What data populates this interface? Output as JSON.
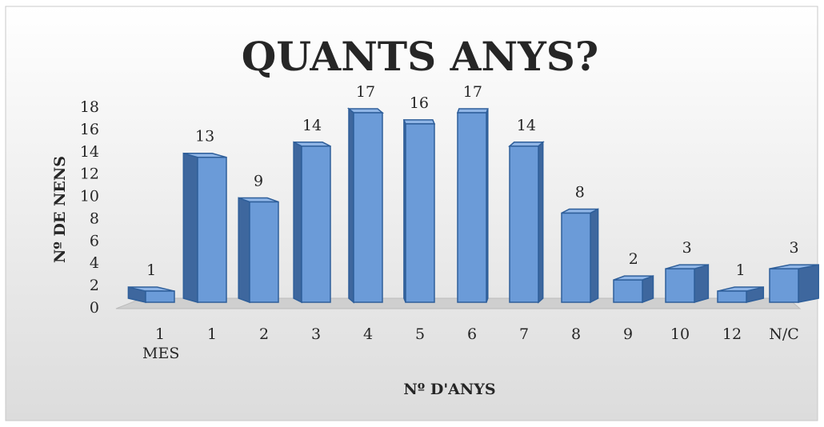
{
  "chart_data": {
    "type": "bar3d",
    "title": "QUANTS ANYS?",
    "x_label": "Nº D'ANYS",
    "y_label": "Nº DE NENS",
    "categories": [
      "1 MES",
      "1",
      "2",
      "3",
      "4",
      "5",
      "6",
      "7",
      "8",
      "9",
      "10",
      "12",
      "N/C"
    ],
    "values": [
      1,
      13,
      9,
      14,
      17,
      16,
      17,
      14,
      8,
      2,
      3,
      1,
      3
    ],
    "color": "#6b9bd8",
    "ylim": [
      0,
      18
    ],
    "yticks": [
      0,
      2,
      4,
      6,
      8,
      10,
      12,
      14,
      16,
      18
    ],
    "grid": false
  }
}
